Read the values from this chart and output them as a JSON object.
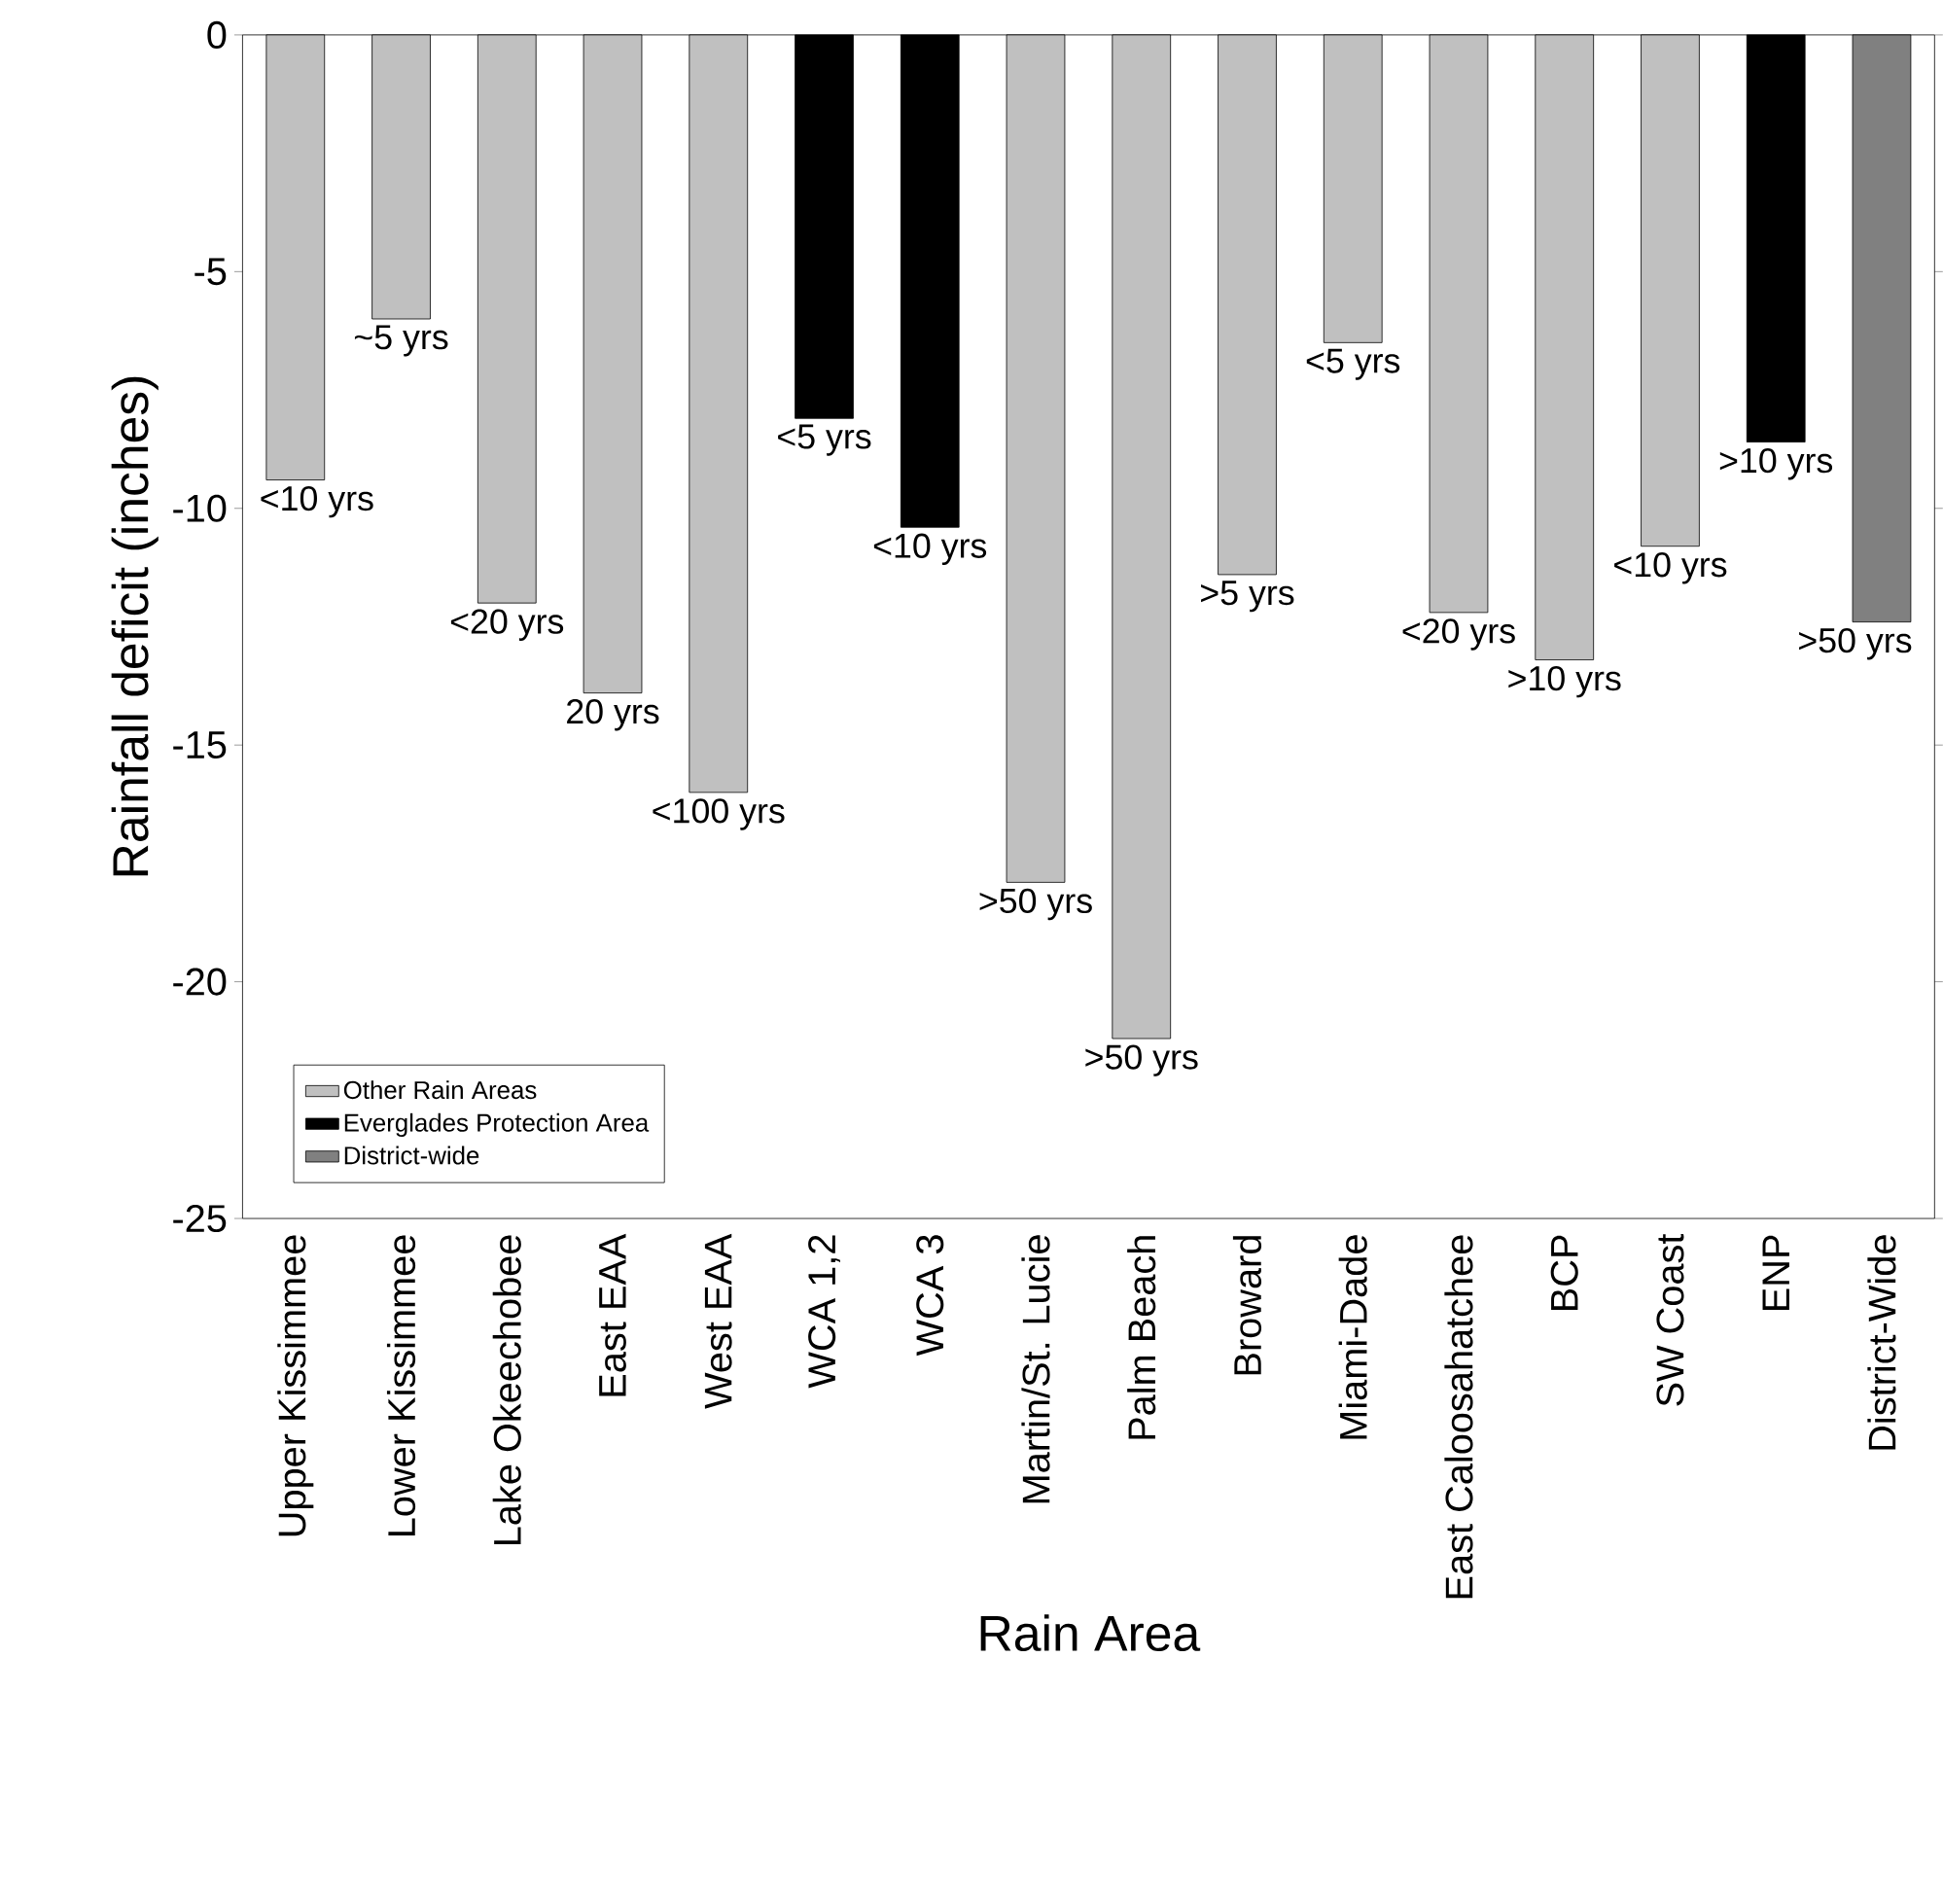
{
  "chart_data": {
    "type": "bar",
    "xlabel": "Rain Area",
    "ylabel": "Rainfall deficit (inches)",
    "categories": [
      "Upper Kissimmee",
      "Lower Kissimmee",
      "Lake Okeechobee",
      "East EAA",
      "West EAA",
      "WCA 1,2",
      "WCA 3",
      "Martin/St. Lucie",
      "Palm Beach",
      "Broward",
      "Miami-Dade",
      "East Caloosahatchee",
      "BCP",
      "SW Coast",
      "ENP",
      "District-Wide"
    ],
    "series": [
      {
        "name": "Other Rain Areas",
        "color": "#c0c0c0",
        "values": [
          -9.4,
          -6.0,
          -12.0,
          -13.9,
          -16.0,
          null,
          null,
          -17.9,
          -21.2,
          -11.4,
          -6.5,
          -12.2,
          -13.2,
          -10.8,
          null,
          null
        ]
      },
      {
        "name": "Everglades Protection Area",
        "color": "#000000",
        "values": [
          null,
          null,
          null,
          null,
          null,
          -8.1,
          -10.4,
          null,
          null,
          null,
          null,
          null,
          null,
          null,
          -8.6,
          null
        ]
      },
      {
        "name": "District-wide",
        "color": "#808080",
        "values": [
          null,
          null,
          null,
          null,
          null,
          null,
          null,
          null,
          null,
          null,
          null,
          null,
          null,
          null,
          null,
          -12.4
        ]
      }
    ],
    "annotations": [
      {
        "text": "<10 yrs",
        "x": "Upper Kissimmee",
        "y": -9.4
      },
      {
        "text": "~5 yrs",
        "x": "Lower Kissimmee",
        "y": -6.0
      },
      {
        "text": "<20 yrs",
        "x": "Lake Okeechobee",
        "y": -12.0
      },
      {
        "text": "20 yrs",
        "x": "East EAA",
        "y": -13.9
      },
      {
        "text": "<100 yrs",
        "x": "West EAA",
        "y": -16.0
      },
      {
        "text": "<5 yrs",
        "x": "WCA 1,2",
        "y": -8.1
      },
      {
        "text": "<10 yrs",
        "x": "WCA 3",
        "y": -10.4
      },
      {
        "text": ">50 yrs",
        "x": "Martin/St. Lucie",
        "y": -17.9
      },
      {
        "text": ">50 yrs",
        "x": "Palm Beach",
        "y": -21.2
      },
      {
        "text": ">5 yrs",
        "x": "Broward",
        "y": -11.4
      },
      {
        "text": "<5 yrs",
        "x": "Miami-Dade",
        "y": -6.5
      },
      {
        "text": "<20 yrs",
        "x": "East Caloosahatchee",
        "y": -12.2
      },
      {
        "text": ">10 yrs",
        "x": "BCP",
        "y": -13.2
      },
      {
        "text": "<10 yrs",
        "x": "SW Coast",
        "y": -10.8
      },
      {
        "text": ">10 yrs",
        "x": "ENP",
        "y": -8.6
      },
      {
        "text": ">50 yrs",
        "x": "District-Wide",
        "y": -12.4
      }
    ],
    "ylim": [
      -25,
      0
    ],
    "yticks": [
      0,
      -5,
      -10,
      -15,
      -20,
      -25
    ],
    "legend": "bottom left",
    "grid": false
  }
}
